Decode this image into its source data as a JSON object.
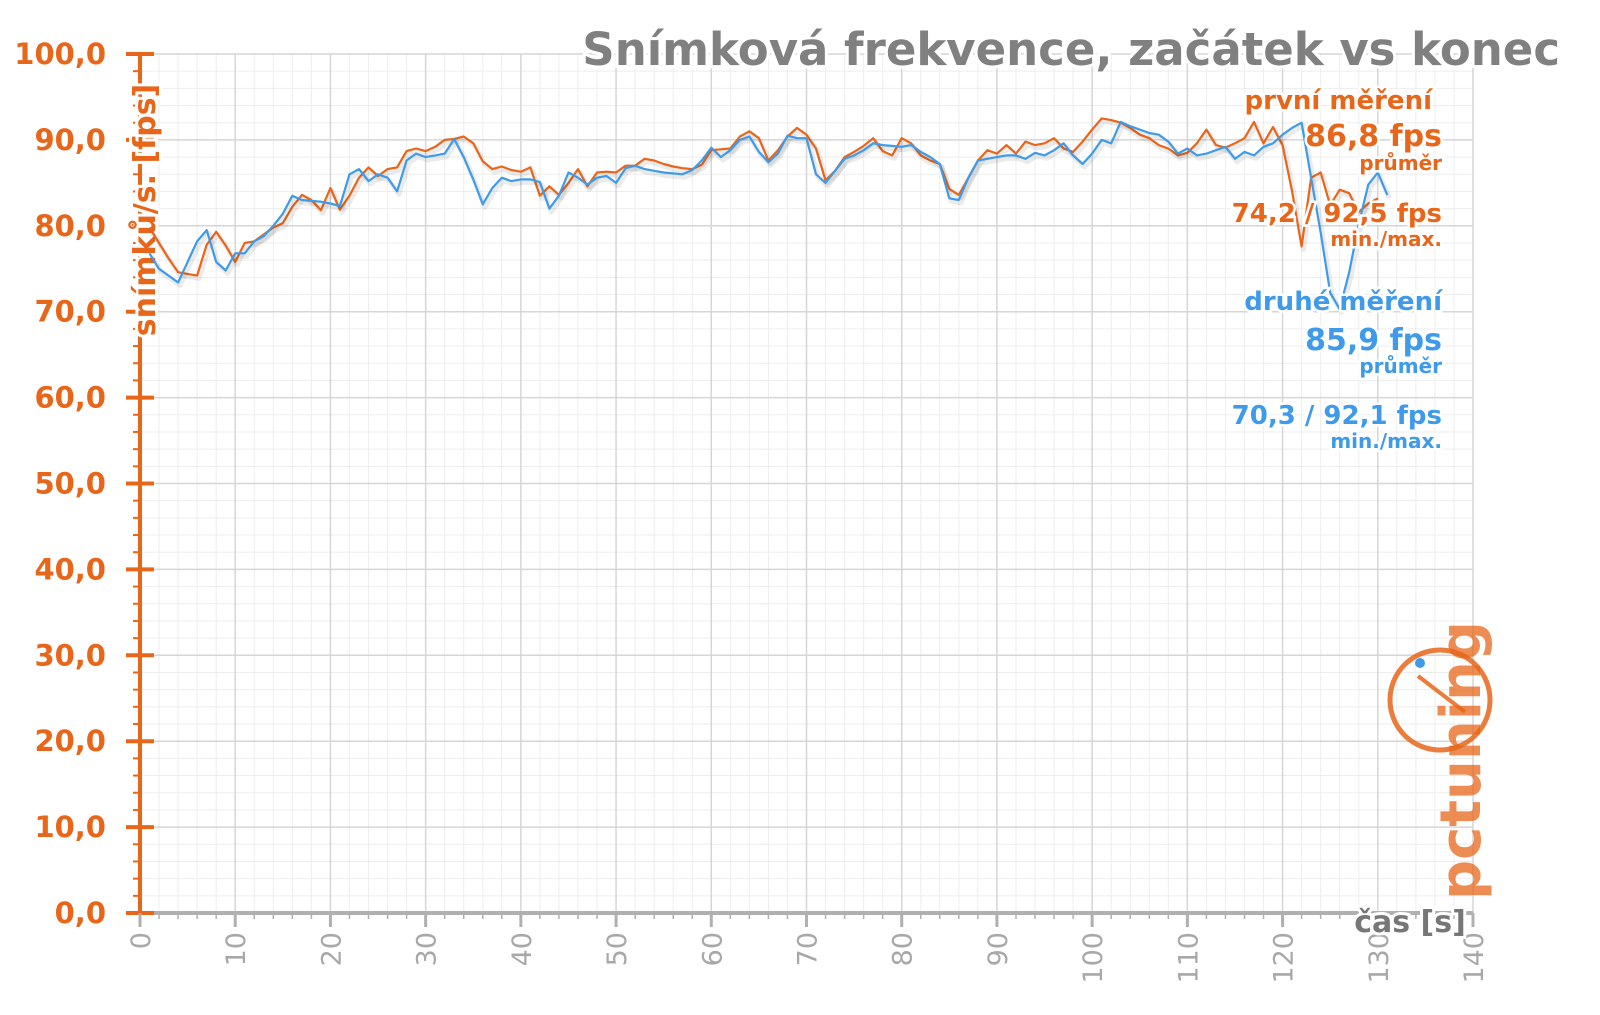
{
  "chart_data": {
    "type": "line",
    "title": "Snímková frekvence, začátek vs konec",
    "xlabel": "čas [s]",
    "ylabel": "snímků/s. [fps]",
    "xlim": [
      0,
      140
    ],
    "ylim": [
      0,
      100
    ],
    "x_ticks": [
      "0",
      "10",
      "20",
      "30",
      "40",
      "50",
      "60",
      "70",
      "80",
      "90",
      "100",
      "110",
      "120",
      "130",
      "140"
    ],
    "y_ticks": [
      "0,0",
      "10,0",
      "20,0",
      "30,0",
      "40,0",
      "50,0",
      "60,0",
      "70,0",
      "80,0",
      "90,0",
      "100,0"
    ],
    "grid": true,
    "series": [
      {
        "name": "první měření",
        "color": "#e8661a",
        "avg_value": "86,8 fps",
        "avg_label": "průměr",
        "minmax_value": "74,2 / 92,5 fps",
        "minmax_label": "min./max.",
        "x": [
          1,
          2,
          3,
          4,
          5,
          6,
          7,
          8,
          9,
          10,
          11,
          12,
          13,
          14,
          15,
          16,
          17,
          18,
          19,
          20,
          21,
          22,
          23,
          24,
          25,
          26,
          27,
          28,
          29,
          30,
          31,
          32,
          33,
          34,
          35,
          36,
          37,
          38,
          39,
          40,
          41,
          42,
          43,
          44,
          45,
          46,
          47,
          48,
          49,
          50,
          51,
          52,
          53,
          54,
          55,
          56,
          57,
          58,
          59,
          60,
          61,
          62,
          63,
          64,
          65,
          66,
          67,
          68,
          69,
          70,
          71,
          72,
          73,
          74,
          75,
          76,
          77,
          78,
          79,
          80,
          81,
          82,
          83,
          84,
          85,
          86,
          87,
          88,
          89,
          90,
          91,
          92,
          93,
          94,
          95,
          96,
          97,
          98,
          99,
          100,
          101,
          102,
          103,
          104,
          105,
          106,
          107,
          108,
          109,
          110,
          111,
          112,
          113,
          114,
          115,
          116,
          117,
          118,
          119,
          120,
          121,
          122,
          123,
          124,
          125,
          126,
          127,
          128,
          129,
          130
        ],
        "y": [
          79.8,
          78,
          76.2,
          74.6,
          74.4,
          74.2,
          77.8,
          79.3,
          77.7,
          75.8,
          78,
          78.2,
          79,
          79.8,
          80.3,
          82.2,
          83.6,
          83,
          81.8,
          84.4,
          81.9,
          83.5,
          85.6,
          86.8,
          85.8,
          86.6,
          86.8,
          88.7,
          89,
          88.7,
          89.2,
          90,
          90.1,
          90.4,
          89.6,
          87.5,
          86.6,
          86.9,
          86.5,
          86.3,
          86.8,
          83.5,
          84.6,
          83.6,
          85,
          86.6,
          84.6,
          86.2,
          86.3,
          86.2,
          87,
          87,
          87.8,
          87.6,
          87.2,
          86.9,
          86.7,
          86.6,
          87.1,
          88.8,
          88.9,
          89,
          90.4,
          91,
          90.2,
          87.6,
          88.8,
          90.4,
          91.4,
          90.6,
          89,
          85.3,
          86.4,
          88,
          88.6,
          89.3,
          90.2,
          88.7,
          88.2,
          90.2,
          89.6,
          88.2,
          87.6,
          87.2,
          84.3,
          83.6,
          85.6,
          87.6,
          88.8,
          88.4,
          89.4,
          88.4,
          89.8,
          89.4,
          89.6,
          90.2,
          89,
          88.6,
          89.8,
          91.2,
          92.5,
          92.3,
          92,
          91.4,
          90.6,
          90.2,
          89.4,
          89,
          88.2,
          88.5,
          89.6,
          91.2,
          89.4,
          89.1,
          89.6,
          90.2,
          92.1,
          89.6,
          91.5,
          89.4,
          84,
          77.6,
          85.6,
          86.2,
          82.4,
          84.2,
          83.8,
          81.6,
          82.6,
          83.2
        ]
      },
      {
        "name": "druhé měření",
        "color": "#3f9bea",
        "avg_value": "85,9 fps",
        "avg_label": "průměr",
        "minmax_value": "70,3 / 92,1 fps",
        "minmax_label": "min./max.",
        "x": [
          1,
          2,
          3,
          4,
          5,
          6,
          7,
          8,
          9,
          10,
          11,
          12,
          13,
          14,
          15,
          16,
          17,
          18,
          19,
          20,
          21,
          22,
          23,
          24,
          25,
          26,
          27,
          28,
          29,
          30,
          31,
          32,
          33,
          34,
          35,
          36,
          37,
          38,
          39,
          40,
          41,
          42,
          43,
          44,
          45,
          46,
          47,
          48,
          49,
          50,
          51,
          52,
          53,
          54,
          55,
          56,
          57,
          58,
          59,
          60,
          61,
          62,
          63,
          64,
          65,
          66,
          67,
          68,
          69,
          70,
          71,
          72,
          73,
          74,
          75,
          76,
          77,
          78,
          79,
          80,
          81,
          82,
          83,
          84,
          85,
          86,
          87,
          88,
          89,
          90,
          91,
          92,
          93,
          94,
          95,
          96,
          97,
          98,
          99,
          100,
          101,
          102,
          103,
          104,
          105,
          106,
          107,
          108,
          109,
          110,
          111,
          112,
          113,
          114,
          115,
          116,
          117,
          118,
          119,
          120,
          121,
          122,
          123,
          124,
          125,
          126,
          127,
          128,
          129,
          130,
          131
        ],
        "y": [
          76.8,
          75,
          74.2,
          73.4,
          75.8,
          78.2,
          79.5,
          75.8,
          74.8,
          76.8,
          76.8,
          78.2,
          78.8,
          80,
          81.4,
          83.5,
          83,
          82.9,
          82.8,
          82.6,
          82.3,
          86,
          86.6,
          85.2,
          86,
          85.6,
          84,
          87.6,
          88.4,
          88,
          88.2,
          88.4,
          90.1,
          88,
          85.4,
          82.5,
          84.4,
          85.6,
          85.2,
          85.4,
          85.4,
          85.1,
          82,
          83.5,
          86.2,
          85.6,
          84.8,
          85.6,
          85.8,
          85,
          86.7,
          87,
          86.6,
          86.4,
          86.2,
          86.1,
          86,
          86.5,
          87.6,
          89.1,
          88,
          88.8,
          90,
          90.4,
          88.6,
          87.4,
          88.4,
          90.5,
          90.2,
          90.2,
          86,
          85,
          86.4,
          87.8,
          88.2,
          88.8,
          89.6,
          89.4,
          89.3,
          89.2,
          89.4,
          88.6,
          88,
          87.2,
          83.2,
          83,
          85.6,
          87.6,
          87.8,
          88,
          88.2,
          88.2,
          87.8,
          88.5,
          88.2,
          88.8,
          89.6,
          88.2,
          87.2,
          88.4,
          90,
          89.6,
          92.1,
          91.6,
          91.2,
          90.8,
          90.6,
          89.8,
          88.4,
          89,
          88.2,
          88.4,
          88.8,
          89.2,
          87.8,
          88.6,
          88.2,
          89.2,
          89.6,
          90.6,
          91.4,
          92,
          85.6,
          79.2,
          72.2,
          70.3,
          74.6,
          80.2,
          84.8,
          86.2,
          83.6
        ]
      }
    ]
  },
  "watermark": {
    "text": "pctuning",
    "colors": {
      "primary": "#e8661a",
      "secondary": "#3f9bea"
    }
  }
}
